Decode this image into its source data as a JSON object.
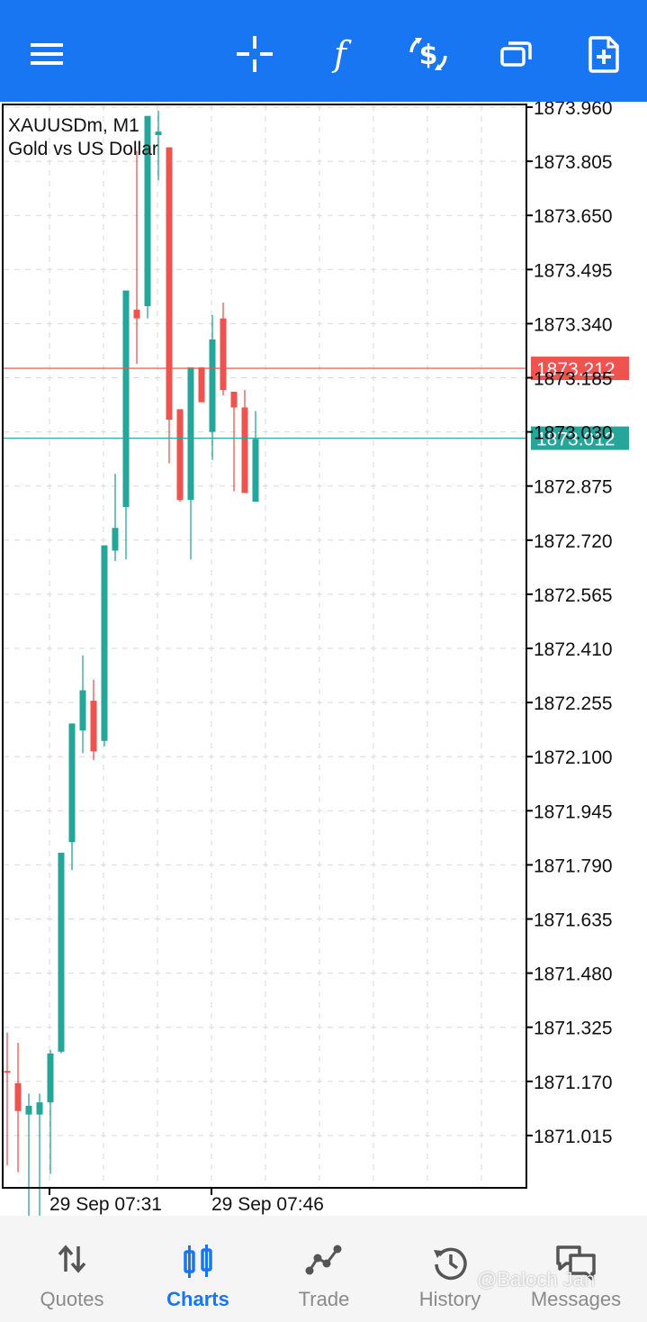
{
  "toolbar": {
    "buttons": [
      {
        "name": "menu-icon"
      },
      {
        "name": "crosshair-icon"
      },
      {
        "name": "indicators-icon"
      },
      {
        "name": "new-order-icon"
      },
      {
        "name": "windows-icon"
      },
      {
        "name": "add-chart-icon"
      }
    ],
    "color": "#1976f2"
  },
  "chart": {
    "symbol": "XAUUSDm, M1",
    "description": "Gold vs US Dollar",
    "bid_line": {
      "price": "1873.012",
      "color": "#26a69a"
    },
    "ask_line": {
      "price": "1873.212",
      "color": "#ef5350"
    },
    "time_labels": [
      "29 Sep 07:31",
      "29 Sep 07:46"
    ]
  },
  "chart_data": {
    "type": "candlestick",
    "title": "XAUUSDm, M1",
    "subtitle": "Gold vs US Dollar",
    "y_ticks": [
      "1873.960",
      "1873.805",
      "1873.650",
      "1873.495",
      "1873.340",
      "1873.185",
      "1873.030",
      "1872.875",
      "1872.720",
      "1872.565",
      "1872.410",
      "1872.255",
      "1872.100",
      "1871.945",
      "1871.790",
      "1871.635",
      "1871.480",
      "1871.325",
      "1871.170",
      "1871.015"
    ],
    "ylim": [
      1870.85,
      1873.975
    ],
    "x_ticks": [
      "29 Sep 07:31",
      "29 Sep 07:46"
    ],
    "up_color": "#26a69a",
    "down_color": "#ef5350",
    "candles": [
      {
        "o": 1871.2,
        "h": 1871.31,
        "l": 1870.93,
        "c": 1871.195
      },
      {
        "o": 1871.165,
        "h": 1871.28,
        "l": 1870.91,
        "c": 1871.085
      },
      {
        "o": 1871.075,
        "h": 1871.135,
        "l": 1870.705,
        "c": 1871.1
      },
      {
        "o": 1871.075,
        "h": 1871.135,
        "l": 1870.705,
        "c": 1871.11
      },
      {
        "o": 1871.11,
        "h": 1871.26,
        "l": 1870.905,
        "c": 1871.25
      },
      {
        "o": 1871.255,
        "h": 1871.82,
        "l": 1871.25,
        "c": 1871.825
      },
      {
        "o": 1871.855,
        "h": 1872.18,
        "l": 1871.775,
        "c": 1872.195
      },
      {
        "o": 1872.175,
        "h": 1872.39,
        "l": 1872.11,
        "c": 1872.29
      },
      {
        "o": 1872.26,
        "h": 1872.32,
        "l": 1872.09,
        "c": 1872.115
      },
      {
        "o": 1872.145,
        "h": 1872.705,
        "l": 1872.13,
        "c": 1872.705
      },
      {
        "o": 1872.69,
        "h": 1872.91,
        "l": 1872.66,
        "c": 1872.755
      },
      {
        "o": 1872.815,
        "h": 1873.415,
        "l": 1872.665,
        "c": 1873.435
      },
      {
        "o": 1873.38,
        "h": 1873.835,
        "l": 1873.225,
        "c": 1873.355
      },
      {
        "o": 1873.39,
        "h": 1873.93,
        "l": 1873.355,
        "c": 1873.935
      },
      {
        "o": 1873.88,
        "h": 1873.95,
        "l": 1873.75,
        "c": 1873.89
      },
      {
        "o": 1873.845,
        "h": 1873.845,
        "l": 1872.94,
        "c": 1873.065
      },
      {
        "o": 1873.095,
        "h": 1873.095,
        "l": 1872.83,
        "c": 1872.835
      },
      {
        "o": 1872.835,
        "h": 1873.215,
        "l": 1872.665,
        "c": 1873.215
      },
      {
        "o": 1873.215,
        "h": 1873.215,
        "l": 1873.115,
        "c": 1873.115
      },
      {
        "o": 1873.03,
        "h": 1873.365,
        "l": 1872.95,
        "c": 1873.295
      },
      {
        "o": 1873.355,
        "h": 1873.4,
        "l": 1873.135,
        "c": 1873.15
      },
      {
        "o": 1873.145,
        "h": 1873.145,
        "l": 1872.86,
        "c": 1873.1
      },
      {
        "o": 1873.1,
        "h": 1873.15,
        "l": 1872.855,
        "c": 1872.855
      },
      {
        "o": 1872.83,
        "h": 1873.09,
        "l": 1872.83,
        "c": 1873.01
      }
    ]
  },
  "nav": {
    "items": [
      {
        "label": "Quotes",
        "icon": "quotes-icon"
      },
      {
        "label": "Charts",
        "icon": "charts-icon",
        "active": true
      },
      {
        "label": "Trade",
        "icon": "trade-icon"
      },
      {
        "label": "History",
        "icon": "history-icon"
      },
      {
        "label": "Messages",
        "icon": "messages-icon"
      }
    ],
    "active_color": "#1976f2"
  },
  "watermark": "@Baloch Jan"
}
